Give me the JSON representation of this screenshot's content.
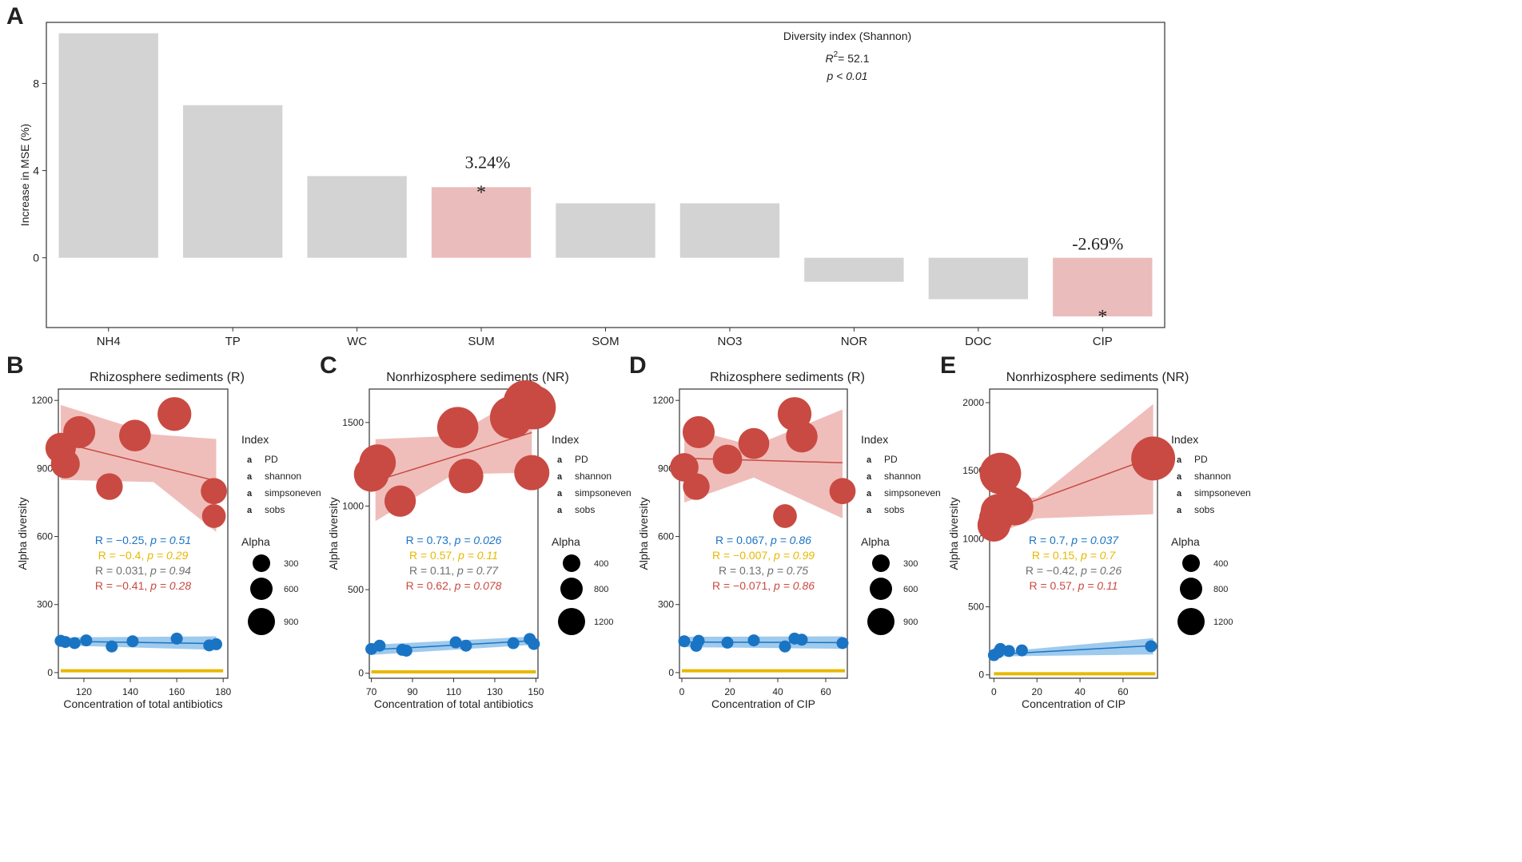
{
  "chart_data": [
    {
      "panel": "A",
      "type": "bar",
      "ylabel": "Increase in MSE (%)",
      "xlabel": "",
      "ylim": [
        -3.2,
        10.8
      ],
      "yticks": [
        0,
        4,
        8
      ],
      "categories": [
        "NH4",
        "TP",
        "WC",
        "SUM",
        "SOM",
        "NO3",
        "NOR",
        "DOC",
        "CIP"
      ],
      "values": [
        10.3,
        7.0,
        3.75,
        3.24,
        2.5,
        2.5,
        -1.1,
        -1.9,
        -2.69
      ],
      "highlighted": [
        "SUM",
        "CIP"
      ],
      "annotation_title": "Diversity index (Shannon)",
      "r2_symbol": "R",
      "r2_sup": "2",
      "r2_value": "= 52.1",
      "p_text": "p < 0.01",
      "labels": [
        {
          "category": "SUM",
          "text": "3.24%",
          "star": "*"
        },
        {
          "category": "CIP",
          "text": "-2.69%",
          "star": "*"
        }
      ],
      "colors": {
        "default": "#d3d3d3",
        "highlight": "#ebbcbc"
      }
    },
    {
      "panel": "B",
      "type": "scatter",
      "title": "Rhizosphere sediments (R)",
      "xlabel": "Concentration of total antibiotics",
      "ylabel": "Alpha diversity",
      "xlim": [
        109,
        182
      ],
      "ylim": [
        -25,
        1250
      ],
      "xticks": [
        120,
        140,
        160,
        180
      ],
      "yticks": [
        0,
        300,
        600,
        900,
        1200
      ],
      "series": [
        {
          "name": "sobs",
          "points": [
            [
              110,
              990
            ],
            [
              112,
              920
            ],
            [
              118,
              1060
            ],
            [
              131,
              820
            ],
            [
              142,
              1045
            ],
            [
              159,
              1140
            ],
            [
              176,
              800
            ],
            [
              176,
              690
            ]
          ]
        },
        {
          "name": "PD",
          "points": [
            [
              110,
              140
            ],
            [
              112,
              135
            ],
            [
              116,
              130
            ],
            [
              121,
              142
            ],
            [
              132,
              115
            ],
            [
              141,
              138
            ],
            [
              160,
              150
            ],
            [
              174,
              120
            ],
            [
              177,
              125
            ]
          ]
        },
        {
          "name": "shannon",
          "points": [
            [
              110,
              8
            ],
            [
              180,
              8
            ]
          ]
        }
      ],
      "fits": {
        "sobs": [
          [
            110,
            1015
          ],
          [
            177,
            845
          ]
        ],
        "PD": [
          [
            110,
            138
          ],
          [
            177,
            128
          ]
        ]
      },
      "bands": {
        "sobs": {
          "upper": [
            [
              110,
              1180
            ],
            [
              150,
              1050
            ],
            [
              177,
              1030
            ]
          ],
          "lower": [
            [
              177,
              620
            ],
            [
              150,
              840
            ],
            [
              110,
              850
            ]
          ]
        },
        "PD": {
          "upper": [
            [
              110,
              155
            ],
            [
              177,
              160
            ]
          ],
          "lower": [
            [
              177,
              100
            ],
            [
              110,
              120
            ]
          ]
        }
      },
      "stats": [
        {
          "index": "PD",
          "r": "R = −0.25, ",
          "p": "p = 0.51"
        },
        {
          "index": "shannon",
          "r": "R = −0.4, ",
          "p": "p = 0.29"
        },
        {
          "index": "simpsoneven",
          "r": "R = 0.031, ",
          "p": "p = 0.94"
        },
        {
          "index": "sobs",
          "r": "R = −0.41, ",
          "p": "p = 0.28"
        }
      ],
      "legend_index_title": "Index",
      "legend_index_entries": [
        "PD",
        "shannon",
        "simpsoneven",
        "sobs"
      ],
      "legend_alpha_title": "Alpha",
      "legend_alpha_entries": [
        "300",
        "600",
        "900"
      ]
    },
    {
      "panel": "C",
      "type": "scatter",
      "title": "Nonrhizosphere sediments (NR)",
      "xlabel": "Concentration of total antibiotics",
      "ylabel": "Alpha diversity",
      "xlim": [
        69,
        151
      ],
      "ylim": [
        -30,
        1700
      ],
      "xticks": [
        70,
        90,
        110,
        130,
        150
      ],
      "yticks": [
        0,
        500,
        1000,
        1500
      ],
      "series": [
        {
          "name": "sobs",
          "points": [
            [
              70,
              1190
            ],
            [
              73,
              1260
            ],
            [
              84,
              1030
            ],
            [
              112,
              1470
            ],
            [
              116,
              1180
            ],
            [
              138,
              1530
            ],
            [
              145,
              1620
            ],
            [
              148,
              1200
            ],
            [
              149,
              1590
            ]
          ]
        },
        {
          "name": "PD",
          "points": [
            [
              70,
              145
            ],
            [
              74,
              165
            ],
            [
              85,
              140
            ],
            [
              87,
              135
            ],
            [
              111,
              185
            ],
            [
              116,
              165
            ],
            [
              139,
              180
            ],
            [
              147,
              205
            ],
            [
              149,
              175
            ]
          ]
        },
        {
          "name": "shannon",
          "points": [
            [
              70,
              8
            ],
            [
              150,
              8
            ]
          ]
        }
      ],
      "fits": {
        "sobs": [
          [
            72,
            1150
          ],
          [
            148,
            1440
          ]
        ],
        "PD": [
          [
            70,
            140
          ],
          [
            149,
            195
          ]
        ]
      },
      "bands": {
        "sobs": {
          "upper": [
            [
              72,
              1400
            ],
            [
              110,
              1420
            ],
            [
              148,
              1690
            ]
          ],
          "lower": [
            [
              148,
              1200
            ],
            [
              110,
              1190
            ],
            [
              72,
              910
            ]
          ]
        },
        "PD": {
          "upper": [
            [
              70,
              170
            ],
            [
              149,
              220
            ]
          ],
          "lower": [
            [
              149,
              170
            ],
            [
              70,
              110
            ]
          ]
        }
      },
      "stats": [
        {
          "index": "PD",
          "r": "R = 0.73, ",
          "p": "p = 0.026"
        },
        {
          "index": "shannon",
          "r": "R = 0.57, ",
          "p": "p = 0.11"
        },
        {
          "index": "simpsoneven",
          "r": "R = 0.11, ",
          "p": "p = 0.77"
        },
        {
          "index": "sobs",
          "r": "R = 0.62, ",
          "p": "p = 0.078"
        }
      ],
      "legend_index_title": "Index",
      "legend_index_entries": [
        "PD",
        "shannon",
        "simpsoneven",
        "sobs"
      ],
      "legend_alpha_title": "Alpha",
      "legend_alpha_entries": [
        "400",
        "800",
        "1200"
      ]
    },
    {
      "panel": "D",
      "type": "scatter",
      "title": "Rhizosphere sediments (R)",
      "xlabel": "Concentration of CIP",
      "ylabel": "Alpha diversity",
      "xlim": [
        -1,
        69
      ],
      "ylim": [
        -25,
        1250
      ],
      "xticks": [
        0,
        20,
        40,
        60
      ],
      "yticks": [
        0,
        300,
        600,
        900,
        1200
      ],
      "series": [
        {
          "name": "sobs",
          "points": [
            [
              1,
              905
            ],
            [
              6,
              820
            ],
            [
              7,
              1060
            ],
            [
              19,
              940
            ],
            [
              30,
              1010
            ],
            [
              43,
              690
            ],
            [
              47,
              1140
            ],
            [
              50,
              1040
            ],
            [
              67,
              800
            ]
          ]
        },
        {
          "name": "PD",
          "points": [
            [
              1,
              138
            ],
            [
              6,
              118
            ],
            [
              7,
              140
            ],
            [
              19,
              132
            ],
            [
              30,
              142
            ],
            [
              43,
              115
            ],
            [
              47,
              150
            ],
            [
              50,
              145
            ],
            [
              67,
              130
            ]
          ]
        },
        {
          "name": "shannon",
          "points": [
            [
              0,
              8
            ],
            [
              68,
              8
            ]
          ]
        }
      ],
      "fits": {
        "sobs": [
          [
            1,
            945
          ],
          [
            67,
            925
          ]
        ],
        "PD": [
          [
            1,
            135
          ],
          [
            67,
            132
          ]
        ]
      },
      "bands": {
        "sobs": {
          "upper": [
            [
              1,
              1080
            ],
            [
              30,
              1000
            ],
            [
              67,
              1160
            ]
          ],
          "lower": [
            [
              67,
              680
            ],
            [
              30,
              860
            ],
            [
              1,
              750
            ]
          ]
        },
        "PD": {
          "upper": [
            [
              1,
              158
            ],
            [
              67,
              160
            ]
          ],
          "lower": [
            [
              67,
              105
            ],
            [
              1,
              112
            ]
          ]
        }
      },
      "stats": [
        {
          "index": "PD",
          "r": "R = 0.067, ",
          "p": "p = 0.86"
        },
        {
          "index": "shannon",
          "r": "R = −0.007, ",
          "p": "p = 0.99"
        },
        {
          "index": "simpsoneven",
          "r": "R = 0.13, ",
          "p": "p = 0.75"
        },
        {
          "index": "sobs",
          "r": "R = −0.071, ",
          "p": "p = 0.86"
        }
      ],
      "legend_index_title": "Index",
      "legend_index_entries": [
        "PD",
        "shannon",
        "simpsoneven",
        "sobs"
      ],
      "legend_alpha_title": "Alpha",
      "legend_alpha_entries": [
        "300",
        "600",
        "900"
      ]
    },
    {
      "panel": "E",
      "type": "scatter",
      "title": "Nonrhizosphere sediments (NR)",
      "xlabel": "Concentration of CIP",
      "ylabel": "Alpha diversity",
      "xlim": [
        -2,
        76
      ],
      "ylim": [
        -25,
        2100
      ],
      "xticks": [
        0,
        20,
        40,
        60
      ],
      "yticks": [
        0,
        500,
        1000,
        1500,
        2000
      ],
      "series": [
        {
          "name": "sobs",
          "points": [
            [
              0,
              1100
            ],
            [
              1,
              1150
            ],
            [
              2,
              1200
            ],
            [
              3,
              1480
            ],
            [
              8,
              1250
            ],
            [
              10,
              1230
            ],
            [
              74,
              1590
            ]
          ]
        },
        {
          "name": "PD",
          "points": [
            [
              0,
              145
            ],
            [
              2,
              165
            ],
            [
              3,
              190
            ],
            [
              7,
              175
            ],
            [
              13,
              180
            ],
            [
              73,
              210
            ]
          ]
        },
        {
          "name": "shannon",
          "points": [
            [
              0,
              8
            ],
            [
              75,
              8
            ]
          ]
        }
      ],
      "fits": {
        "sobs": [
          [
            0,
            1170
          ],
          [
            74,
            1600
          ]
        ],
        "PD": [
          [
            0,
            150
          ],
          [
            74,
            215
          ]
        ]
      },
      "bands": {
        "sobs": {
          "upper": [
            [
              0,
              1310
            ],
            [
              20,
              1300
            ],
            [
              74,
              1990
            ]
          ],
          "lower": [
            [
              74,
              1180
            ],
            [
              20,
              1150
            ],
            [
              0,
              1030
            ]
          ]
        },
        "PD": {
          "upper": [
            [
              0,
              165
            ],
            [
              74,
              270
            ]
          ],
          "lower": [
            [
              74,
              150
            ],
            [
              0,
              135
            ]
          ]
        }
      },
      "stats": [
        {
          "index": "PD",
          "r": "R = 0.7, ",
          "p": "p = 0.037"
        },
        {
          "index": "shannon",
          "r": "R = 0.15, ",
          "p": "p = 0.7"
        },
        {
          "index": "simpsoneven",
          "r": "R = −0.42, ",
          "p": "p = 0.26"
        },
        {
          "index": "sobs",
          "r": "R = 0.57, ",
          "p": "p = 0.11"
        }
      ],
      "legend_index_title": "Index",
      "legend_index_entries": [
        "PD",
        "shannon",
        "simpsoneven",
        "sobs"
      ],
      "legend_alpha_title": "Alpha",
      "legend_alpha_entries": [
        "400",
        "800",
        "1200"
      ]
    }
  ],
  "panel_letters": [
    "A",
    "B",
    "C",
    "D",
    "E"
  ],
  "index_colors": {
    "PD": "#1a74c4",
    "shannon": "#e8b800",
    "simpsoneven": "#707070",
    "sobs": "#c94a42"
  },
  "band_colors": {
    "sobs": "#e9a8a4",
    "PD": "#86bde8"
  }
}
